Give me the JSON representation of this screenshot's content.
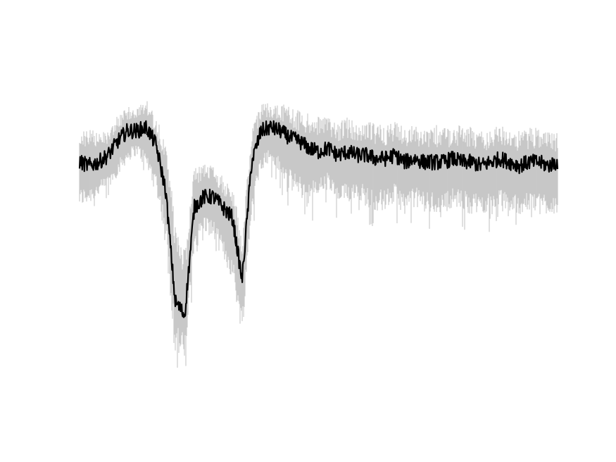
{
  "chart_data": {
    "type": "line",
    "title": "",
    "xlabel": "",
    "ylabel": "",
    "axes_visible": false,
    "grid": false,
    "xlim": [
      0,
      1
    ],
    "ylim": [
      0,
      1
    ],
    "series": [
      {
        "role": "individual-traces",
        "color": "#b8b8b8",
        "x": [
          0.0,
          0.02,
          0.04,
          0.06,
          0.08,
          0.1,
          0.12,
          0.14,
          0.16,
          0.18,
          0.2,
          0.22,
          0.24,
          0.26,
          0.28,
          0.3,
          0.32,
          0.34,
          0.36,
          0.38,
          0.4,
          0.42,
          0.44,
          0.46,
          0.48,
          0.5,
          0.52,
          0.54,
          0.56,
          0.58,
          0.6,
          0.62,
          0.64,
          0.66,
          0.68,
          0.7,
          0.72,
          0.74,
          0.76,
          0.78,
          0.8,
          0.82,
          0.84,
          0.86,
          0.88,
          0.9,
          0.92,
          0.94,
          0.96,
          0.98,
          1.0
        ],
        "upper": [
          0.79,
          0.8,
          0.78,
          0.8,
          0.84,
          0.86,
          0.86,
          0.88,
          0.84,
          0.75,
          0.55,
          0.45,
          0.68,
          0.7,
          0.7,
          0.67,
          0.64,
          0.5,
          0.79,
          0.87,
          0.87,
          0.87,
          0.86,
          0.85,
          0.84,
          0.83,
          0.83,
          0.82,
          0.83,
          0.81,
          0.82,
          0.81,
          0.81,
          0.82,
          0.8,
          0.81,
          0.8,
          0.81,
          0.8,
          0.8,
          0.81,
          0.8,
          0.79,
          0.79,
          0.81,
          0.8,
          0.79,
          0.8,
          0.8,
          0.79,
          0.79
        ],
        "lower": [
          0.57,
          0.58,
          0.6,
          0.62,
          0.66,
          0.7,
          0.72,
          0.68,
          0.62,
          0.48,
          0.15,
          0.12,
          0.45,
          0.5,
          0.48,
          0.42,
          0.36,
          0.2,
          0.55,
          0.68,
          0.7,
          0.66,
          0.62,
          0.6,
          0.58,
          0.6,
          0.62,
          0.57,
          0.58,
          0.6,
          0.57,
          0.56,
          0.56,
          0.58,
          0.55,
          0.57,
          0.56,
          0.55,
          0.55,
          0.57,
          0.56,
          0.55,
          0.55,
          0.56,
          0.56,
          0.55,
          0.55,
          0.55,
          0.56,
          0.55,
          0.55
        ]
      },
      {
        "role": "mean-trace",
        "color": "#000000",
        "x": [
          0.0,
          0.02,
          0.04,
          0.06,
          0.08,
          0.1,
          0.12,
          0.14,
          0.16,
          0.18,
          0.2,
          0.22,
          0.24,
          0.26,
          0.28,
          0.3,
          0.32,
          0.34,
          0.36,
          0.38,
          0.4,
          0.42,
          0.44,
          0.46,
          0.48,
          0.5,
          0.52,
          0.54,
          0.56,
          0.58,
          0.6,
          0.62,
          0.64,
          0.66,
          0.68,
          0.7,
          0.72,
          0.74,
          0.76,
          0.78,
          0.8,
          0.82,
          0.84,
          0.86,
          0.88,
          0.9,
          0.92,
          0.94,
          0.96,
          0.98,
          1.0
        ],
        "y": [
          0.7,
          0.69,
          0.7,
          0.72,
          0.76,
          0.79,
          0.79,
          0.8,
          0.75,
          0.62,
          0.3,
          0.26,
          0.57,
          0.6,
          0.6,
          0.57,
          0.54,
          0.36,
          0.7,
          0.79,
          0.8,
          0.79,
          0.77,
          0.76,
          0.74,
          0.73,
          0.74,
          0.72,
          0.73,
          0.72,
          0.72,
          0.71,
          0.71,
          0.72,
          0.7,
          0.71,
          0.7,
          0.7,
          0.7,
          0.71,
          0.7,
          0.7,
          0.69,
          0.7,
          0.71,
          0.7,
          0.69,
          0.7,
          0.7,
          0.69,
          0.7
        ]
      }
    ]
  }
}
